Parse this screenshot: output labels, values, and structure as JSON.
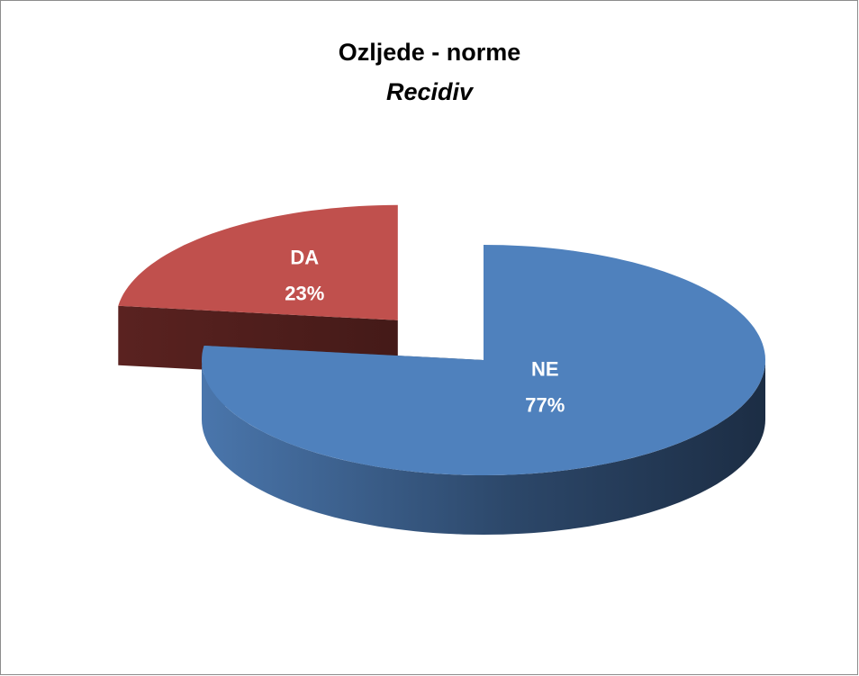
{
  "chart_data": {
    "type": "pie",
    "title": "Ozljede - norme",
    "subtitle": "Recidiv",
    "categories": [
      "NE",
      "DA"
    ],
    "values": [
      77,
      23
    ],
    "value_labels": [
      "77%",
      "23%"
    ],
    "colors": [
      "#4f81bd",
      "#c0504d"
    ],
    "explode": [
      false,
      true
    ],
    "three_d": true
  }
}
